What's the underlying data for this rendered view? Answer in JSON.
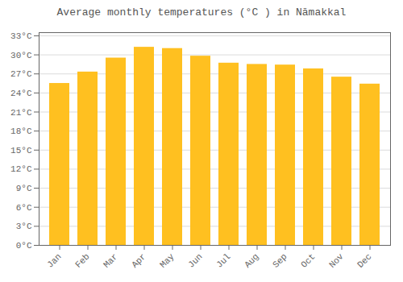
{
  "chart_data": {
    "type": "bar",
    "title": "Average monthly temperatures (°C ) in Nāmakkal",
    "categories": [
      "Jan",
      "Feb",
      "Mar",
      "Apr",
      "May",
      "Jun",
      "Jul",
      "Aug",
      "Sep",
      "Oct",
      "Nov",
      "Dec"
    ],
    "values": [
      25.5,
      27.3,
      29.5,
      31.2,
      31.0,
      29.8,
      28.7,
      28.5,
      28.4,
      27.8,
      26.5,
      25.4
    ],
    "color": "#FFC020",
    "ylim": [
      0,
      33.5
    ],
    "yticks": [
      {
        "value": 0,
        "label": "0°C"
      },
      {
        "value": 3,
        "label": "3°C"
      },
      {
        "value": 6,
        "label": "6°C"
      },
      {
        "value": 9,
        "label": "9°C"
      },
      {
        "value": 12,
        "label": "12°C"
      },
      {
        "value": 15,
        "label": "15°C"
      },
      {
        "value": 18,
        "label": "18°C"
      },
      {
        "value": 21,
        "label": "21°C"
      },
      {
        "value": 24,
        "label": "24°C"
      },
      {
        "value": 27,
        "label": "27°C"
      },
      {
        "value": 30,
        "label": "30°C"
      },
      {
        "value": 33,
        "label": "33°C"
      }
    ],
    "grid": true
  }
}
